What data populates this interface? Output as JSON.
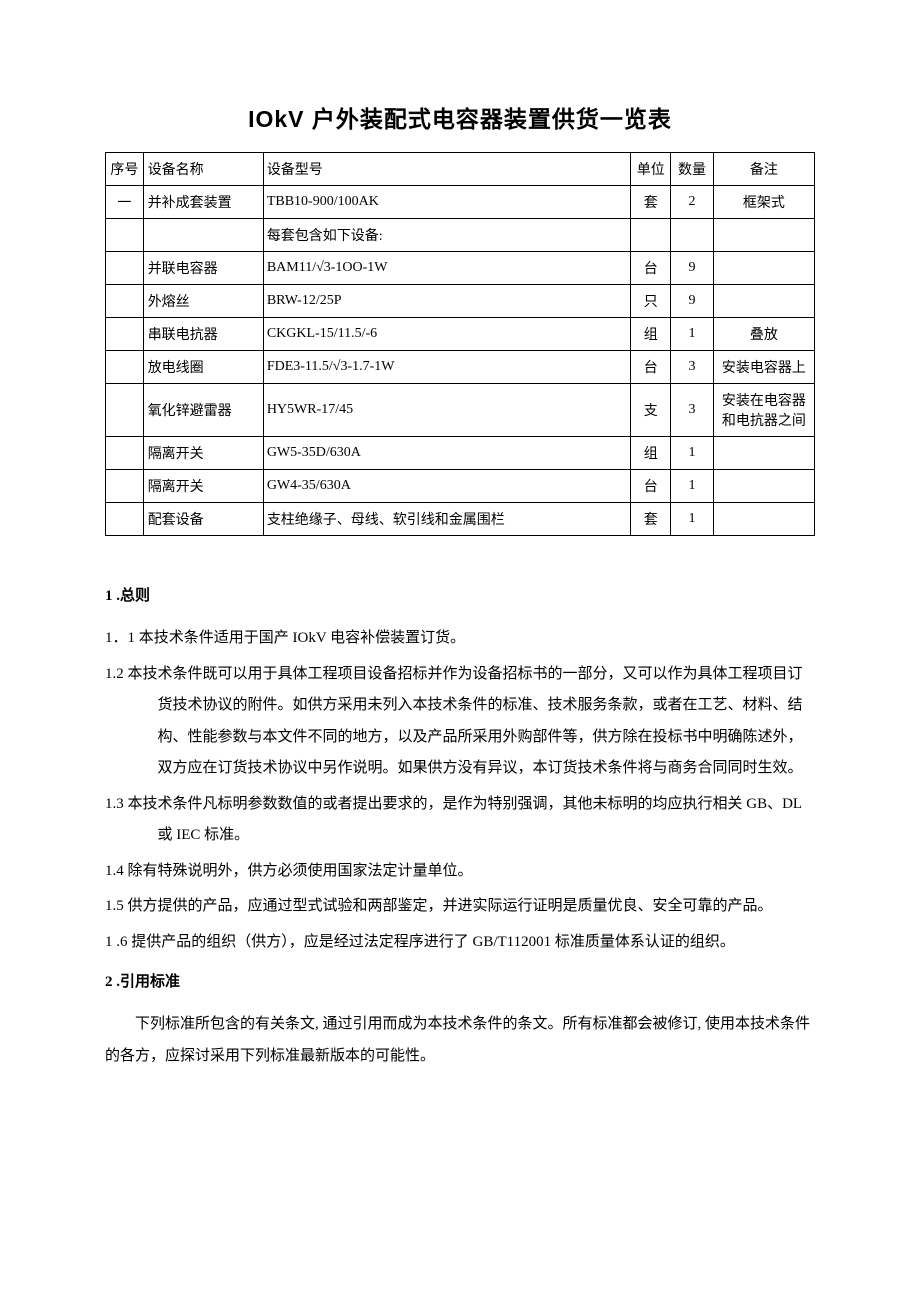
{
  "title": "IOkV 户外装配式电容器装置供货一览表",
  "table": {
    "headers": {
      "seq": "序号",
      "name": "设备名称",
      "model": "设备型号",
      "unit": "单位",
      "qty": "数量",
      "note": "备注"
    },
    "rows": [
      {
        "seq": "一",
        "name": "并补成套装置",
        "model": "TBB10-900/100AK",
        "unit": "套",
        "qty": "2",
        "note": "框架式"
      },
      {
        "seq": "",
        "name": "",
        "model": "每套包含如下设备:",
        "unit": "",
        "qty": "",
        "note": ""
      },
      {
        "seq": "",
        "name": "并联电容器",
        "model": "BAM11/√3-1OO-1W",
        "unit": "台",
        "qty": "9",
        "note": ""
      },
      {
        "seq": "",
        "name": "外熔丝",
        "model": "BRW-12/25P",
        "unit": "只",
        "qty": "9",
        "note": ""
      },
      {
        "seq": "",
        "name": "串联电抗器",
        "model": "CKGKL-15/11.5/-6",
        "unit": "组",
        "qty": "1",
        "note": "叠放"
      },
      {
        "seq": "",
        "name": "放电线圈",
        "model": "FDE3-11.5/√3-1.7-1W",
        "unit": "台",
        "qty": "3",
        "note": "安装电容器上"
      },
      {
        "seq": "",
        "name": "氧化锌避雷器",
        "model": "HY5WR-17/45",
        "unit": "支",
        "qty": "3",
        "note": "安装在电容器和电抗器之间"
      },
      {
        "seq": "",
        "name": "隔离开关",
        "model": "GW5-35D/630A",
        "unit": "组",
        "qty": "1",
        "note": ""
      },
      {
        "seq": "",
        "name": "隔离开关",
        "model": "GW4-35/630A",
        "unit": "台",
        "qty": "1",
        "note": ""
      },
      {
        "seq": "",
        "name": "配套设备",
        "model": "支柱绝缘子、母线、软引线和金属围栏",
        "unit": "套",
        "qty": "1",
        "note": ""
      }
    ]
  },
  "section1": {
    "heading": "1 .总则",
    "items": [
      "1．1 本技术条件适用于国产 IOkV 电容补偿装置订货。",
      "1.2 本技术条件既可以用于具体工程项目设备招标并作为设备招标书的一部分，又可以作为具体工程项目订货技术协议的附件。如供方采用未列入本技术条件的标准、技术服务条款，或者在工艺、材料、结构、性能参数与本文件不同的地方，以及产品所采用外购部件等，供方除在投标书中明确陈述外，双方应在订货技术协议中另作说明。如果供方没有异议，本订货技术条件将与商务合同同时生效。",
      "1.3 本技术条件凡标明参数数值的或者提出要求的，是作为特别强调，其他未标明的均应执行相关 GB、DL 或 IEC 标准。",
      "1.4 除有特殊说明外，供方必须使用国家法定计量单位。",
      "1.5 供方提供的产品，应通过型式试验和两部鉴定，并进实际运行证明是质量优良、安全可靠的产品。",
      "1 .6 提供产品的组织（供方），应是经过法定程序进行了 GB/T112001 标准质量体系认证的组织。"
    ]
  },
  "section2": {
    "heading": "2 .引用标准",
    "body": "下列标准所包含的有关条文, 通过引用而成为本技术条件的条文。所有标准都会被修订, 使用本技术条件的各方，应探讨采用下列标准最新版本的可能性。"
  }
}
